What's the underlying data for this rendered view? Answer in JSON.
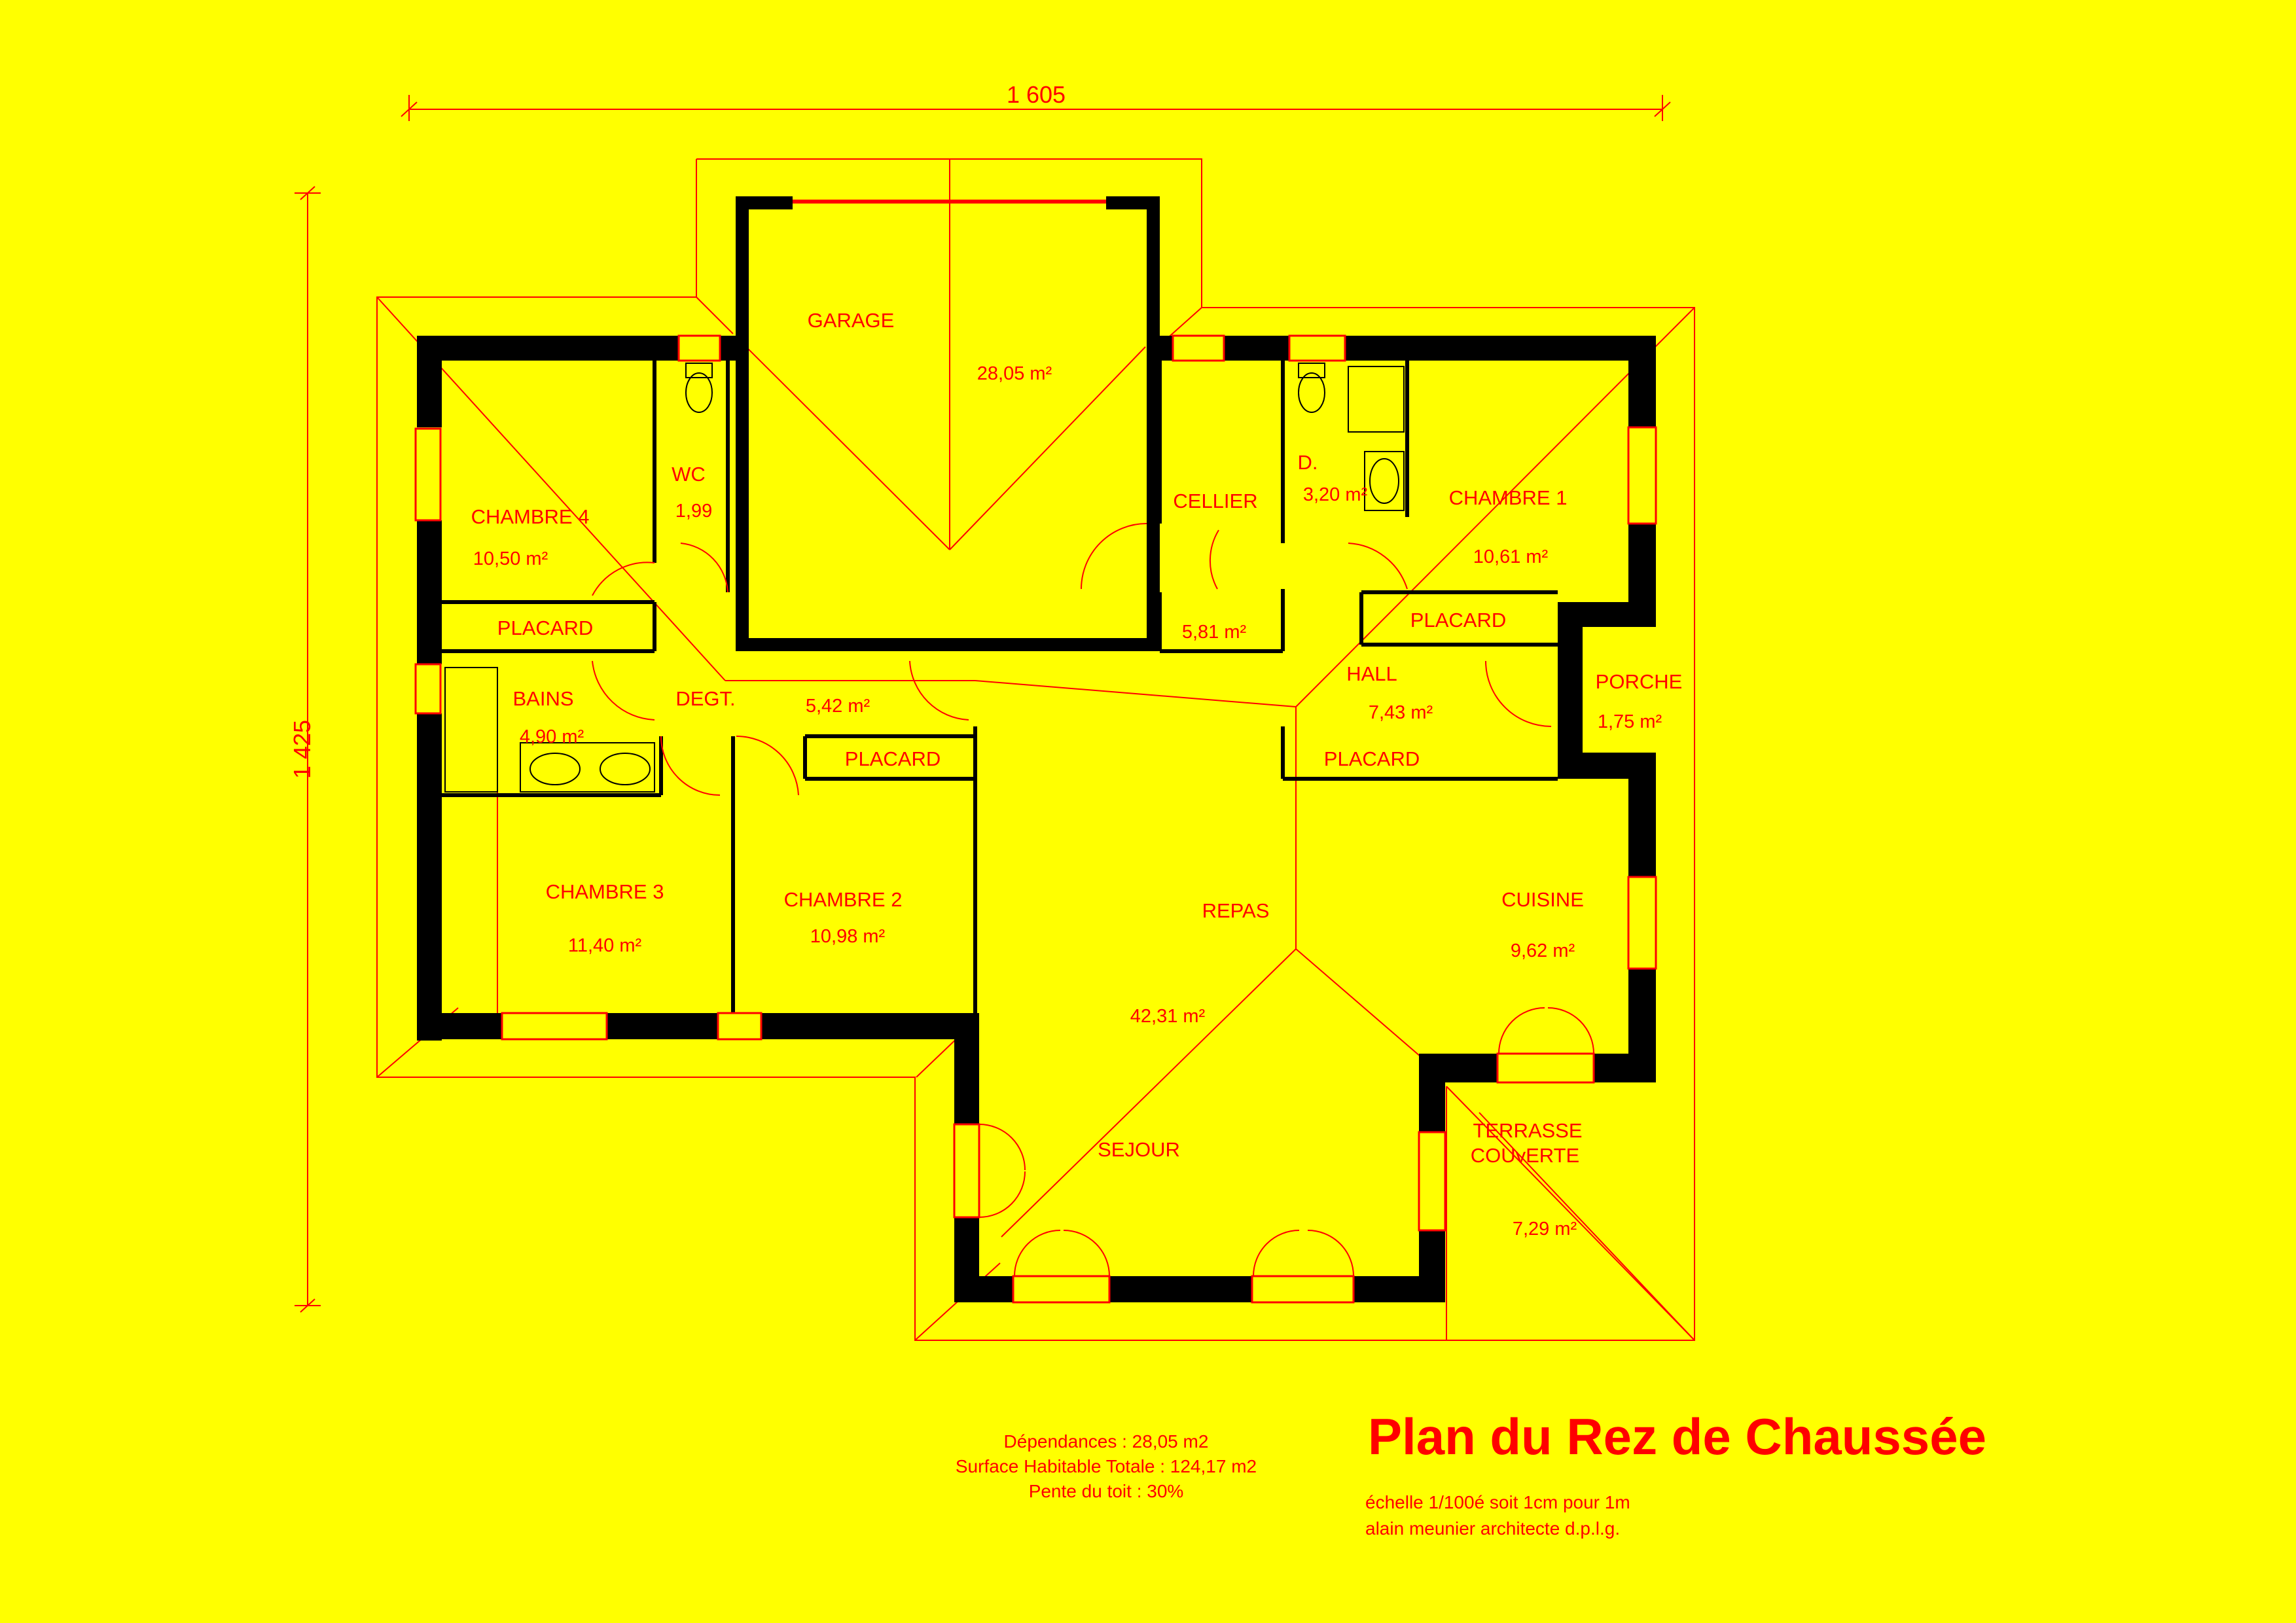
{
  "dimensions": {
    "width": "1 605",
    "height": "1 425"
  },
  "rooms": {
    "garage": {
      "name": "GARAGE",
      "area": "28,05 m²"
    },
    "chambre4": {
      "name": "CHAMBRE 4",
      "area": "10,50 m²"
    },
    "wc": {
      "name": "WC",
      "area": "1,99"
    },
    "cellier": {
      "name": "CELLIER",
      "area": "5,81 m²"
    },
    "douche": {
      "name": "D.",
      "area": "3,20 m²"
    },
    "chambre1": {
      "name": "CHAMBRE 1",
      "area": "10,61 m²"
    },
    "placard_ch4": {
      "name": "PLACARD"
    },
    "placard_ch1": {
      "name": "PLACARD"
    },
    "bains": {
      "name": "BAINS",
      "area": "4,90 m²"
    },
    "degt": {
      "name": "DEGT.",
      "area": "5,42 m²"
    },
    "hall": {
      "name": "HALL",
      "area": "7,43 m²"
    },
    "porche": {
      "name": "PORCHE",
      "area": "1,75 m²"
    },
    "placard_degt": {
      "name": "PLACARD"
    },
    "placard_hall": {
      "name": "PLACARD"
    },
    "chambre3": {
      "name": "CHAMBRE 3",
      "area": "11,40 m²"
    },
    "chambre2": {
      "name": "CHAMBRE 2",
      "area": "10,98 m²"
    },
    "repas": {
      "name": "REPAS",
      "area": "42,31 m²"
    },
    "cuisine": {
      "name": "CUISINE",
      "area": "9,62 m²"
    },
    "sejour": {
      "name": "SEJOUR"
    },
    "terrasse": {
      "name_line1": "TERRASSE",
      "name_line2": "COUvERTE",
      "area": "7,29 m²"
    }
  },
  "summary": {
    "dependances": "Dépendances : 28,05 m2",
    "surface": "Surface Habitable Totale : 124,17 m2",
    "pente": "Pente du toit : 30%"
  },
  "title": "Plan du Rez de Chaussée",
  "scale": "échelle 1/100é soit 1cm pour 1m",
  "architect": "alain meunier architecte d.p.l.g.",
  "colors": {
    "background": "#ffff00",
    "lines": "#ff0000",
    "walls": "#000000"
  }
}
